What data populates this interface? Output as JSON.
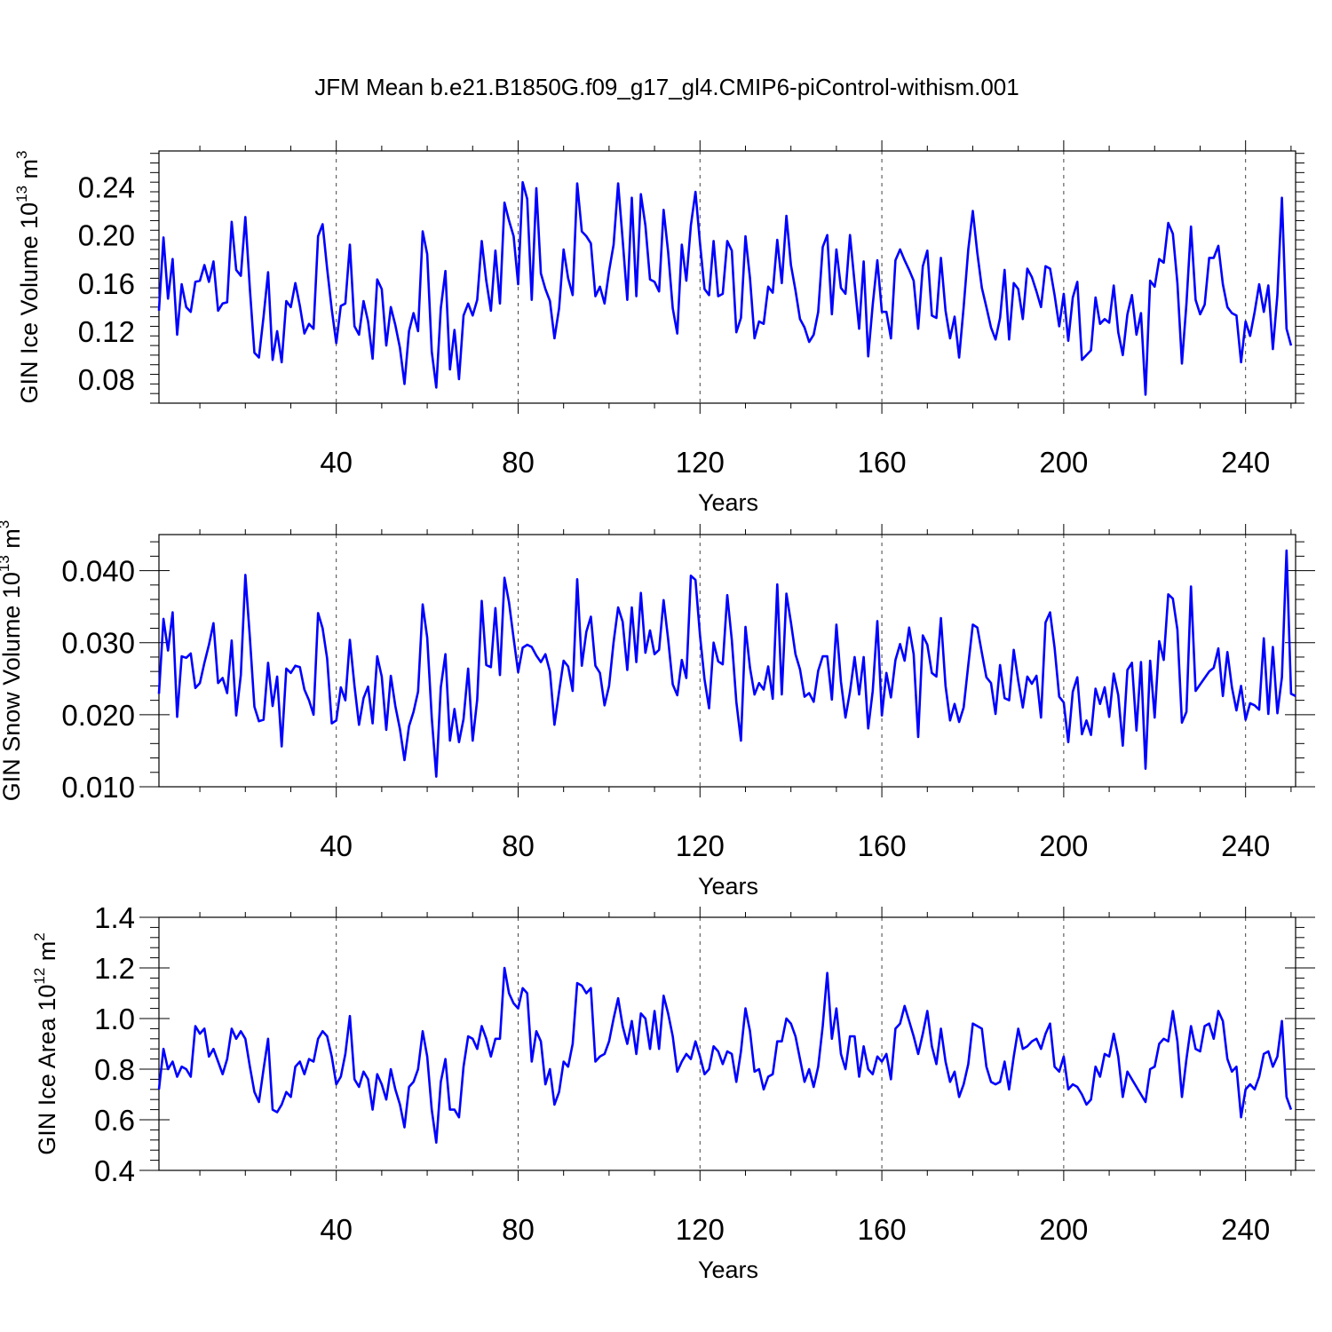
{
  "title": "JFM Mean b.e21.B1850G.f09_g17_gl4.CMIP6-piControl-withism.001",
  "colors": {
    "line": "#0000ff",
    "axis": "#000000",
    "grid": "#000000"
  },
  "chart_data": [
    {
      "type": "line",
      "ylabel_main": "GIN Ice Volume 10",
      "ylabel_sup": "13",
      "ylabel_unit": "m",
      "ylabel_unit_sup": "3",
      "xlabel": "Years",
      "xlim": [
        1,
        251
      ],
      "ylim": [
        0.06,
        0.27
      ],
      "xticks": [
        40,
        80,
        120,
        160,
        200,
        240
      ],
      "xtick_labels": [
        "40",
        "80",
        "120",
        "160",
        "200",
        "240"
      ],
      "yticks": [
        0.08,
        0.12,
        0.16,
        0.2,
        0.24
      ],
      "ytick_labels": [
        "0.08",
        "0.12",
        "0.16",
        "0.20",
        "0.24"
      ],
      "series": [
        {
          "name": "GIN Ice Volume",
          "values": [
            0.137,
            0.198,
            0.147,
            0.18,
            0.117,
            0.159,
            0.14,
            0.136,
            0.161,
            0.162,
            0.175,
            0.161,
            0.178,
            0.137,
            0.143,
            0.144,
            0.211,
            0.171,
            0.166,
            0.215,
            0.155,
            0.102,
            0.098,
            0.132,
            0.169,
            0.096,
            0.12,
            0.094,
            0.145,
            0.14,
            0.16,
            0.141,
            0.118,
            0.126,
            0.122,
            0.199,
            0.209,
            0.172,
            0.138,
            0.11,
            0.141,
            0.143,
            0.192,
            0.124,
            0.117,
            0.145,
            0.128,
            0.097,
            0.163,
            0.155,
            0.108,
            0.14,
            0.125,
            0.106,
            0.076,
            0.12,
            0.135,
            0.12,
            0.203,
            0.184,
            0.103,
            0.073,
            0.139,
            0.17,
            0.088,
            0.121,
            0.08,
            0.133,
            0.143,
            0.133,
            0.146,
            0.195,
            0.162,
            0.137,
            0.187,
            0.143,
            0.227,
            0.212,
            0.199,
            0.159,
            0.244,
            0.23,
            0.146,
            0.239,
            0.168,
            0.155,
            0.145,
            0.114,
            0.139,
            0.188,
            0.164,
            0.15,
            0.243,
            0.203,
            0.199,
            0.193,
            0.149,
            0.157,
            0.143,
            0.17,
            0.192,
            0.243,
            0.196,
            0.146,
            0.231,
            0.149,
            0.234,
            0.208,
            0.163,
            0.161,
            0.153,
            0.221,
            0.186,
            0.139,
            0.118,
            0.192,
            0.162,
            0.208,
            0.236,
            0.193,
            0.155,
            0.15,
            0.195,
            0.149,
            0.151,
            0.195,
            0.187,
            0.119,
            0.131,
            0.199,
            0.164,
            0.114,
            0.128,
            0.126,
            0.157,
            0.152,
            0.196,
            0.16,
            0.216,
            0.175,
            0.154,
            0.13,
            0.123,
            0.111,
            0.117,
            0.136,
            0.19,
            0.2,
            0.134,
            0.188,
            0.156,
            0.151,
            0.2,
            0.16,
            0.122,
            0.178,
            0.099,
            0.142,
            0.179,
            0.136,
            0.136,
            0.114,
            0.179,
            0.188,
            0.179,
            0.171,
            0.162,
            0.122,
            0.174,
            0.187,
            0.133,
            0.131,
            0.181,
            0.137,
            0.114,
            0.132,
            0.098,
            0.14,
            0.188,
            0.22,
            0.185,
            0.156,
            0.14,
            0.123,
            0.113,
            0.131,
            0.171,
            0.113,
            0.16,
            0.155,
            0.13,
            0.172,
            0.165,
            0.153,
            0.14,
            0.174,
            0.172,
            0.15,
            0.124,
            0.151,
            0.112,
            0.148,
            0.161,
            0.096,
            0.1,
            0.104,
            0.148,
            0.126,
            0.13,
            0.127,
            0.158,
            0.119,
            0.1,
            0.134,
            0.15,
            0.117,
            0.135,
            0.067,
            0.162,
            0.157,
            0.18,
            0.177,
            0.21,
            0.201,
            0.16,
            0.093,
            0.143,
            0.207,
            0.146,
            0.134,
            0.142,
            0.181,
            0.181,
            0.191,
            0.159,
            0.14,
            0.135,
            0.133,
            0.094,
            0.128,
            0.116,
            0.136,
            0.159,
            0.136,
            0.158,
            0.105,
            0.15,
            0.231,
            0.122,
            0.108
          ]
        }
      ]
    },
    {
      "type": "line",
      "ylabel_main": "GIN Snow Volume 10",
      "ylabel_sup": "13",
      "ylabel_unit": "m",
      "ylabel_unit_sup": "3",
      "xlabel": "Years",
      "xlim": [
        1,
        251
      ],
      "ylim": [
        0.01,
        0.045
      ],
      "xticks": [
        40,
        80,
        120,
        160,
        200,
        240
      ],
      "xtick_labels": [
        "40",
        "80",
        "120",
        "160",
        "200",
        "240"
      ],
      "yticks": [
        0.01,
        0.02,
        0.03,
        0.04
      ],
      "ytick_labels": [
        "0.010",
        "0.020",
        "0.030",
        "0.040"
      ],
      "series": [
        {
          "name": "GIN Snow Volume",
          "values": [
            0.0229,
            0.0333,
            0.0289,
            0.0342,
            0.0197,
            0.0281,
            0.0279,
            0.0285,
            0.0237,
            0.0244,
            0.0272,
            0.0297,
            0.0327,
            0.0244,
            0.0251,
            0.023,
            0.0303,
            0.0199,
            0.0255,
            0.0394,
            0.0307,
            0.0211,
            0.0191,
            0.0193,
            0.0272,
            0.0212,
            0.0253,
            0.0156,
            0.0264,
            0.0258,
            0.0268,
            0.0266,
            0.0235,
            0.022,
            0.02,
            0.0341,
            0.032,
            0.0278,
            0.0188,
            0.0192,
            0.0238,
            0.022,
            0.0304,
            0.024,
            0.0186,
            0.0223,
            0.0239,
            0.0188,
            0.0281,
            0.0253,
            0.0179,
            0.0254,
            0.0212,
            0.018,
            0.0137,
            0.0184,
            0.0204,
            0.0232,
            0.0353,
            0.0307,
            0.0196,
            0.0114,
            0.0238,
            0.0284,
            0.0164,
            0.0208,
            0.0162,
            0.0194,
            0.0264,
            0.0164,
            0.0221,
            0.0358,
            0.0269,
            0.0266,
            0.0348,
            0.0255,
            0.039,
            0.0356,
            0.0306,
            0.0259,
            0.0293,
            0.0297,
            0.0294,
            0.0282,
            0.0273,
            0.0284,
            0.026,
            0.0186,
            0.0232,
            0.0275,
            0.0267,
            0.0233,
            0.0388,
            0.0268,
            0.0315,
            0.0336,
            0.0268,
            0.0258,
            0.0213,
            0.024,
            0.0301,
            0.0349,
            0.0329,
            0.0262,
            0.0349,
            0.0273,
            0.0369,
            0.0286,
            0.0317,
            0.0284,
            0.029,
            0.0359,
            0.0305,
            0.0242,
            0.0227,
            0.0276,
            0.0251,
            0.0393,
            0.0387,
            0.031,
            0.0249,
            0.0209,
            0.03,
            0.0274,
            0.027,
            0.0366,
            0.0304,
            0.0218,
            0.0164,
            0.0322,
            0.0265,
            0.0228,
            0.0244,
            0.0235,
            0.0267,
            0.0222,
            0.0381,
            0.0228,
            0.0368,
            0.0328,
            0.0284,
            0.0263,
            0.0225,
            0.023,
            0.0218,
            0.0261,
            0.0281,
            0.0281,
            0.0221,
            0.0325,
            0.0246,
            0.0196,
            0.0232,
            0.028,
            0.0228,
            0.028,
            0.0181,
            0.0233,
            0.033,
            0.0199,
            0.0258,
            0.0224,
            0.0276,
            0.0298,
            0.0275,
            0.0321,
            0.0284,
            0.0169,
            0.031,
            0.0297,
            0.0258,
            0.0253,
            0.0334,
            0.024,
            0.0192,
            0.0215,
            0.019,
            0.021,
            0.0269,
            0.0325,
            0.0321,
            0.0286,
            0.0252,
            0.0244,
            0.0201,
            0.0269,
            0.0223,
            0.022,
            0.029,
            0.0247,
            0.021,
            0.0253,
            0.0243,
            0.0254,
            0.0196,
            0.0328,
            0.0342,
            0.0293,
            0.0225,
            0.0217,
            0.0162,
            0.0232,
            0.0252,
            0.0173,
            0.0192,
            0.0172,
            0.0236,
            0.0215,
            0.0238,
            0.0197,
            0.0257,
            0.0227,
            0.0157,
            0.0262,
            0.0272,
            0.0178,
            0.0273,
            0.0125,
            0.0275,
            0.0196,
            0.0302,
            0.0276,
            0.0367,
            0.0361,
            0.0318,
            0.0189,
            0.0204,
            0.0378,
            0.0233,
            0.0242,
            0.0251,
            0.026,
            0.0265,
            0.0292,
            0.0226,
            0.0287,
            0.0238,
            0.0206,
            0.024,
            0.0193,
            0.0216,
            0.0213,
            0.0207,
            0.0306,
            0.0201,
            0.0294,
            0.0202,
            0.0252,
            0.0428,
            0.0229,
            0.0226
          ]
        }
      ]
    },
    {
      "type": "line",
      "ylabel_main": "GIN Ice Area 10",
      "ylabel_sup": "12",
      "ylabel_unit": "m",
      "ylabel_unit_sup": "2",
      "xlabel": "Years",
      "xlim": [
        1,
        251
      ],
      "ylim": [
        0.4,
        1.4
      ],
      "xticks": [
        40,
        80,
        120,
        160,
        200,
        240
      ],
      "xtick_labels": [
        "40",
        "80",
        "120",
        "160",
        "200",
        "240"
      ],
      "yticks": [
        0.4,
        0.6,
        0.8,
        1.0,
        1.2,
        1.4
      ],
      "ytick_labels": [
        "0.4",
        "0.6",
        "0.8",
        "1.0",
        "1.2",
        "1.4"
      ],
      "series": [
        {
          "name": "GIN Ice Area",
          "values": [
            0.72,
            0.88,
            0.8,
            0.83,
            0.77,
            0.81,
            0.8,
            0.77,
            0.97,
            0.94,
            0.96,
            0.85,
            0.88,
            0.83,
            0.78,
            0.84,
            0.96,
            0.92,
            0.95,
            0.92,
            0.81,
            0.71,
            0.67,
            0.8,
            0.92,
            0.64,
            0.63,
            0.66,
            0.71,
            0.69,
            0.81,
            0.83,
            0.78,
            0.84,
            0.83,
            0.92,
            0.95,
            0.93,
            0.85,
            0.74,
            0.77,
            0.86,
            1.01,
            0.76,
            0.73,
            0.79,
            0.76,
            0.64,
            0.78,
            0.74,
            0.68,
            0.8,
            0.72,
            0.66,
            0.57,
            0.73,
            0.75,
            0.8,
            0.95,
            0.85,
            0.64,
            0.51,
            0.75,
            0.84,
            0.64,
            0.64,
            0.61,
            0.81,
            0.93,
            0.92,
            0.88,
            0.97,
            0.92,
            0.85,
            0.92,
            0.92,
            1.2,
            1.1,
            1.06,
            1.04,
            1.12,
            1.1,
            0.83,
            0.95,
            0.91,
            0.74,
            0.8,
            0.66,
            0.71,
            0.83,
            0.81,
            0.9,
            1.14,
            1.13,
            1.1,
            1.12,
            0.83,
            0.85,
            0.86,
            0.91,
            1.0,
            1.08,
            0.97,
            0.9,
            0.99,
            0.86,
            1.02,
            1.0,
            0.88,
            1.03,
            0.88,
            1.09,
            1.02,
            0.93,
            0.79,
            0.83,
            0.86,
            0.84,
            0.91,
            0.85,
            0.78,
            0.8,
            0.89,
            0.87,
            0.82,
            0.87,
            0.86,
            0.75,
            0.87,
            1.04,
            0.95,
            0.79,
            0.8,
            0.72,
            0.77,
            0.78,
            0.91,
            0.91,
            1.0,
            0.98,
            0.93,
            0.84,
            0.75,
            0.8,
            0.73,
            0.81,
            0.97,
            1.18,
            0.92,
            1.04,
            0.86,
            0.8,
            0.93,
            0.93,
            0.77,
            0.89,
            0.8,
            0.78,
            0.85,
            0.83,
            0.86,
            0.76,
            0.96,
            0.98,
            1.05,
            0.99,
            0.93,
            0.86,
            0.94,
            1.03,
            0.89,
            0.82,
            0.96,
            0.83,
            0.75,
            0.79,
            0.69,
            0.74,
            0.82,
            0.98,
            0.97,
            0.96,
            0.81,
            0.75,
            0.74,
            0.75,
            0.83,
            0.72,
            0.85,
            0.96,
            0.88,
            0.89,
            0.91,
            0.92,
            0.88,
            0.94,
            0.98,
            0.81,
            0.79,
            0.85,
            0.72,
            0.74,
            0.73,
            0.7,
            0.66,
            0.68,
            0.81,
            0.77,
            0.86,
            0.85,
            0.94,
            0.85,
            0.69,
            0.79,
            0.76,
            0.73,
            0.7,
            0.67,
            0.8,
            0.81,
            0.9,
            0.92,
            0.91,
            1.03,
            0.91,
            0.69,
            0.84,
            0.97,
            0.88,
            0.87,
            0.97,
            0.98,
            0.92,
            1.03,
            0.99,
            0.84,
            0.79,
            0.81,
            0.61,
            0.72,
            0.74,
            0.72,
            0.77,
            0.86,
            0.87,
            0.81,
            0.85,
            0.99,
            0.69,
            0.64
          ]
        }
      ]
    }
  ]
}
